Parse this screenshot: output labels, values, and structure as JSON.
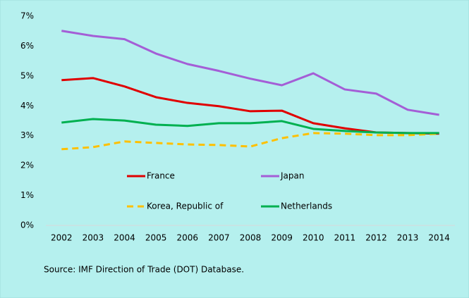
{
  "chart_data": {
    "type": "line",
    "categories": [
      "2002",
      "2003",
      "2004",
      "2005",
      "2006",
      "2007",
      "2008",
      "2009",
      "2010",
      "2011",
      "2012",
      "2013",
      "2014"
    ],
    "series": [
      {
        "name": "France",
        "color": "#e00000",
        "dashed": false,
        "values": [
          4.86,
          4.93,
          4.65,
          4.29,
          4.1,
          3.99,
          3.82,
          3.84,
          3.42,
          3.25,
          3.11,
          3.09,
          3.07
        ]
      },
      {
        "name": "Japan",
        "color": "#a45ed6",
        "dashed": false,
        "values": [
          6.51,
          6.34,
          6.23,
          5.75,
          5.4,
          5.17,
          4.91,
          4.69,
          5.09,
          4.55,
          4.41,
          3.87,
          3.7
        ]
      },
      {
        "name": "Korea, Republic of",
        "color": "#ffc000",
        "dashed": true,
        "values": [
          2.55,
          2.62,
          2.81,
          2.76,
          2.71,
          2.69,
          2.64,
          2.92,
          3.09,
          3.07,
          3.02,
          3.02,
          3.07
        ]
      },
      {
        "name": "Netherlands",
        "color": "#00b050",
        "dashed": false,
        "values": [
          3.44,
          3.56,
          3.51,
          3.37,
          3.33,
          3.42,
          3.42,
          3.49,
          3.23,
          3.16,
          3.11,
          3.09,
          3.09
        ]
      }
    ],
    "ylim": [
      0,
      7
    ],
    "yticks": [
      {
        "value": 0,
        "label": "0%"
      },
      {
        "value": 1,
        "label": "1%"
      },
      {
        "value": 2,
        "label": "2%"
      },
      {
        "value": 3,
        "label": "3%"
      },
      {
        "value": 4,
        "label": "4%"
      },
      {
        "value": 5,
        "label": "5%"
      },
      {
        "value": 6,
        "label": "6%"
      },
      {
        "value": 7,
        "label": "7%"
      }
    ],
    "grid": false,
    "source": "Source: IMF Direction of Trade (DOT) Database."
  }
}
